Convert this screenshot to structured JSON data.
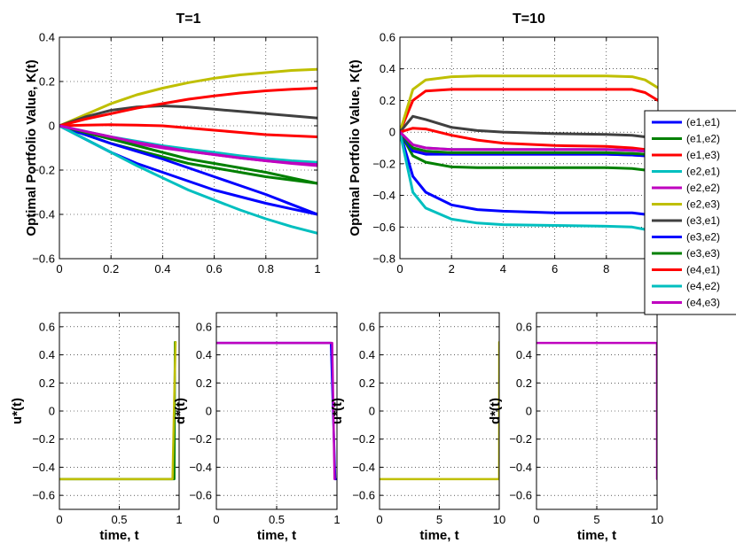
{
  "chart_data": [
    {
      "type": "line",
      "title": "T=1",
      "ylabel": "Optimal Portfolio Value, K(t)",
      "xlim": [
        0,
        1
      ],
      "ylim": [
        -0.6,
        0.4
      ],
      "xticks": [
        "0",
        "0.2",
        "0.4",
        "0.6",
        "0.8",
        "1"
      ],
      "yticks": [
        "0.4",
        "0.2",
        "0",
        "−0.2",
        "−0.4",
        "−0.6"
      ],
      "grid": true,
      "x": [
        0,
        0.1,
        0.2,
        0.3,
        0.4,
        0.5,
        0.6,
        0.7,
        0.8,
        0.9,
        1.0
      ],
      "series": [
        {
          "name": "(e1,e1)",
          "color": "#0000ff",
          "values": [
            0,
            -0.06,
            -0.12,
            -0.17,
            -0.21,
            -0.25,
            -0.29,
            -0.32,
            -0.35,
            -0.375,
            -0.4
          ]
        },
        {
          "name": "(e1,e2)",
          "color": "#008000",
          "values": [
            0,
            -0.04,
            -0.08,
            -0.11,
            -0.14,
            -0.17,
            -0.19,
            -0.21,
            -0.23,
            -0.245,
            -0.26
          ]
        },
        {
          "name": "(e1,e3)",
          "color": "#ff0000",
          "values": [
            0,
            0.003,
            0.005,
            0.003,
            0,
            -0.01,
            -0.02,
            -0.03,
            -0.04,
            -0.045,
            -0.05
          ]
        },
        {
          "name": "(e2,e1)",
          "color": "#00bfbf",
          "values": [
            0,
            -0.025,
            -0.05,
            -0.07,
            -0.09,
            -0.105,
            -0.12,
            -0.135,
            -0.148,
            -0.158,
            -0.165
          ]
        },
        {
          "name": "(e2,e2)",
          "color": "#bf00bf",
          "values": [
            0,
            -0.03,
            -0.055,
            -0.08,
            -0.1,
            -0.115,
            -0.13,
            -0.145,
            -0.158,
            -0.168,
            -0.175
          ]
        },
        {
          "name": "(e2,e3)",
          "color": "#bfbf00",
          "values": [
            0,
            0.05,
            0.1,
            0.14,
            0.17,
            0.195,
            0.215,
            0.23,
            0.24,
            0.25,
            0.255
          ]
        },
        {
          "name": "(e3,e1)",
          "color": "#404040",
          "values": [
            0,
            0.04,
            0.07,
            0.085,
            0.09,
            0.085,
            0.075,
            0.065,
            0.055,
            0.045,
            0.035
          ]
        },
        {
          "name": "(e3,e2)",
          "color": "#0000ff",
          "values": [
            0,
            -0.04,
            -0.08,
            -0.115,
            -0.15,
            -0.19,
            -0.23,
            -0.27,
            -0.31,
            -0.355,
            -0.4
          ]
        },
        {
          "name": "(e3,e3)",
          "color": "#008000",
          "values": [
            0,
            -0.03,
            -0.06,
            -0.09,
            -0.12,
            -0.15,
            -0.17,
            -0.19,
            -0.21,
            -0.235,
            -0.26
          ]
        },
        {
          "name": "(e4,e1)",
          "color": "#ff0000",
          "values": [
            0,
            0.03,
            0.055,
            0.08,
            0.1,
            0.12,
            0.135,
            0.148,
            0.158,
            0.165,
            0.17
          ]
        },
        {
          "name": "(e4,e2)",
          "color": "#00bfbf",
          "values": [
            0,
            -0.06,
            -0.12,
            -0.18,
            -0.235,
            -0.29,
            -0.335,
            -0.38,
            -0.42,
            -0.455,
            -0.485
          ]
        },
        {
          "name": "(e4,e3)",
          "color": "#bf00bf",
          "values": [
            0,
            -0.025,
            -0.05,
            -0.075,
            -0.095,
            -0.115,
            -0.13,
            -0.145,
            -0.158,
            -0.17,
            -0.18
          ]
        }
      ]
    },
    {
      "type": "line",
      "title": "T=10",
      "ylabel": "Optimal Portfolio Value, K(t)",
      "xlim": [
        0,
        10
      ],
      "ylim": [
        -0.8,
        0.6
      ],
      "xticks": [
        "0",
        "2",
        "4",
        "6",
        "8"
      ],
      "yticks": [
        "0.6",
        "0.4",
        "0.2",
        "0",
        "−0.2",
        "−0.4",
        "−0.6",
        "−0.8"
      ],
      "grid": true,
      "x": [
        0,
        0.5,
        1,
        2,
        3,
        4,
        6,
        8,
        9,
        9.5,
        10
      ],
      "series": [
        {
          "name": "(e1,e1)",
          "color": "#0000ff",
          "values": [
            0,
            -0.28,
            -0.38,
            -0.46,
            -0.49,
            -0.5,
            -0.51,
            -0.51,
            -0.51,
            -0.52,
            -0.56
          ]
        },
        {
          "name": "(e1,e2)",
          "color": "#008000",
          "values": [
            0,
            -0.15,
            -0.19,
            -0.22,
            -0.225,
            -0.225,
            -0.225,
            -0.225,
            -0.23,
            -0.24,
            -0.27
          ]
        },
        {
          "name": "(e1,e3)",
          "color": "#ff0000",
          "values": [
            0,
            0.2,
            0.26,
            0.27,
            0.27,
            0.27,
            0.27,
            0.27,
            0.27,
            0.25,
            0.2
          ]
        },
        {
          "name": "(e2,e1)",
          "color": "#00bfbf",
          "values": [
            0,
            -0.08,
            -0.1,
            -0.11,
            -0.11,
            -0.11,
            -0.11,
            -0.11,
            -0.115,
            -0.12,
            -0.14
          ]
        },
        {
          "name": "(e2,e2)",
          "color": "#bf00bf",
          "values": [
            0,
            -0.11,
            -0.135,
            -0.14,
            -0.14,
            -0.14,
            -0.14,
            -0.14,
            -0.145,
            -0.15,
            -0.17
          ]
        },
        {
          "name": "(e2,e3)",
          "color": "#bfbf00",
          "values": [
            0,
            0.27,
            0.33,
            0.35,
            0.355,
            0.355,
            0.355,
            0.355,
            0.35,
            0.33,
            0.28
          ]
        },
        {
          "name": "(e3,e1)",
          "color": "#404040",
          "values": [
            0,
            0.1,
            0.08,
            0.03,
            0.01,
            0,
            -0.01,
            -0.015,
            -0.02,
            -0.03,
            -0.06
          ]
        },
        {
          "name": "(e3,e2)",
          "color": "#0000ff",
          "values": [
            0,
            -0.12,
            -0.14,
            -0.14,
            -0.14,
            -0.14,
            -0.14,
            -0.14,
            -0.145,
            -0.15,
            -0.16
          ]
        },
        {
          "name": "(e3,e3)",
          "color": "#008000",
          "values": [
            0,
            -0.1,
            -0.12,
            -0.13,
            -0.13,
            -0.13,
            -0.13,
            -0.13,
            -0.135,
            -0.14,
            -0.16
          ]
        },
        {
          "name": "(e4,e1)",
          "color": "#ff0000",
          "values": [
            0,
            0.025,
            0.02,
            -0.02,
            -0.05,
            -0.07,
            -0.085,
            -0.09,
            -0.1,
            -0.11,
            -0.13
          ]
        },
        {
          "name": "(e4,e2)",
          "color": "#00bfbf",
          "values": [
            0,
            -0.38,
            -0.48,
            -0.55,
            -0.575,
            -0.585,
            -0.59,
            -0.595,
            -0.6,
            -0.615,
            -0.65
          ]
        },
        {
          "name": "(e4,e3)",
          "color": "#bf00bf",
          "values": [
            0,
            -0.08,
            -0.1,
            -0.11,
            -0.11,
            -0.11,
            -0.11,
            -0.11,
            -0.115,
            -0.12,
            -0.135
          ]
        }
      ]
    },
    {
      "type": "line",
      "xlabel": "time, t",
      "ylabel": "u*(t)",
      "xlim": [
        0,
        1
      ],
      "ylim": [
        -0.7,
        0.7
      ],
      "xticks": [
        "0",
        "0.5",
        "1"
      ],
      "yticks": [
        "0.6",
        "0.4",
        "0.2",
        "0",
        "−0.2",
        "−0.4",
        "−0.6"
      ],
      "grid": true,
      "series": [
        {
          "color": "#008000",
          "x": [
            0,
            0.96,
            0.965,
            0.97
          ],
          "values": [
            -0.485,
            -0.485,
            0.49,
            0.49
          ]
        },
        {
          "color": "#bfbf00",
          "x": [
            0,
            0.945,
            0.97
          ],
          "values": [
            -0.485,
            -0.485,
            0.49
          ]
        }
      ]
    },
    {
      "type": "line",
      "xlabel": "time, t",
      "ylabel": "d*(t)",
      "xlim": [
        0,
        1
      ],
      "ylim": [
        -0.7,
        0.7
      ],
      "xticks": [
        "0",
        "0.5",
        "1"
      ],
      "yticks": [
        "0.6",
        "0.4",
        "0.2",
        "0",
        "−0.2",
        "−0.4",
        "−0.6"
      ],
      "grid": true,
      "series": [
        {
          "color": "#0000ff",
          "x": [
            0,
            0.95,
            0.985,
            0.99
          ],
          "values": [
            0.485,
            0.485,
            -0.485,
            -0.485
          ]
        },
        {
          "color": "#bf00bf",
          "x": [
            0,
            0.96,
            0.98
          ],
          "values": [
            0.485,
            0.485,
            -0.485
          ]
        }
      ]
    },
    {
      "type": "line",
      "xlabel": "time, t",
      "ylabel": "u*(t)",
      "xlim": [
        0,
        10
      ],
      "ylim": [
        -0.7,
        0.7
      ],
      "xticks": [
        "0",
        "5",
        "10"
      ],
      "yticks": [
        "0.6",
        "0.4",
        "0.2",
        "0",
        "−0.2",
        "−0.4",
        "−0.6"
      ],
      "grid": true,
      "series": [
        {
          "color": "#bfbf00",
          "x": [
            0,
            9.99,
            10
          ],
          "values": [
            -0.485,
            -0.485,
            0.49
          ]
        }
      ]
    },
    {
      "type": "line",
      "xlabel": "time, t",
      "ylabel": "d*(t)",
      "xlim": [
        0,
        10
      ],
      "ylim": [
        -0.7,
        0.7
      ],
      "xticks": [
        "0",
        "5",
        "10"
      ],
      "yticks": [
        "0.6",
        "0.4",
        "0.2",
        "0",
        "−0.2",
        "−0.4",
        "−0.6"
      ],
      "grid": true,
      "series": [
        {
          "color": "#bf00bf",
          "x": [
            0,
            9.99,
            10
          ],
          "values": [
            0.485,
            0.485,
            -0.485
          ]
        }
      ]
    }
  ],
  "legend": {
    "placement": "right",
    "entries": [
      {
        "label": "(e1,e1)",
        "color": "#0000ff"
      },
      {
        "label": "(e1,e2)",
        "color": "#008000"
      },
      {
        "label": "(e1,e3)",
        "color": "#ff0000"
      },
      {
        "label": "(e2,e1)",
        "color": "#00bfbf"
      },
      {
        "label": "(e2,e2)",
        "color": "#bf00bf"
      },
      {
        "label": "(e2,e3)",
        "color": "#bfbf00"
      },
      {
        "label": "(e3,e1)",
        "color": "#404040"
      },
      {
        "label": "(e3,e2)",
        "color": "#0000ff"
      },
      {
        "label": "(e3,e3)",
        "color": "#008000"
      },
      {
        "label": "(e4,e1)",
        "color": "#ff0000"
      },
      {
        "label": "(e4,e2)",
        "color": "#00bfbf"
      },
      {
        "label": "(e4,e3)",
        "color": "#bf00bf"
      }
    ]
  }
}
